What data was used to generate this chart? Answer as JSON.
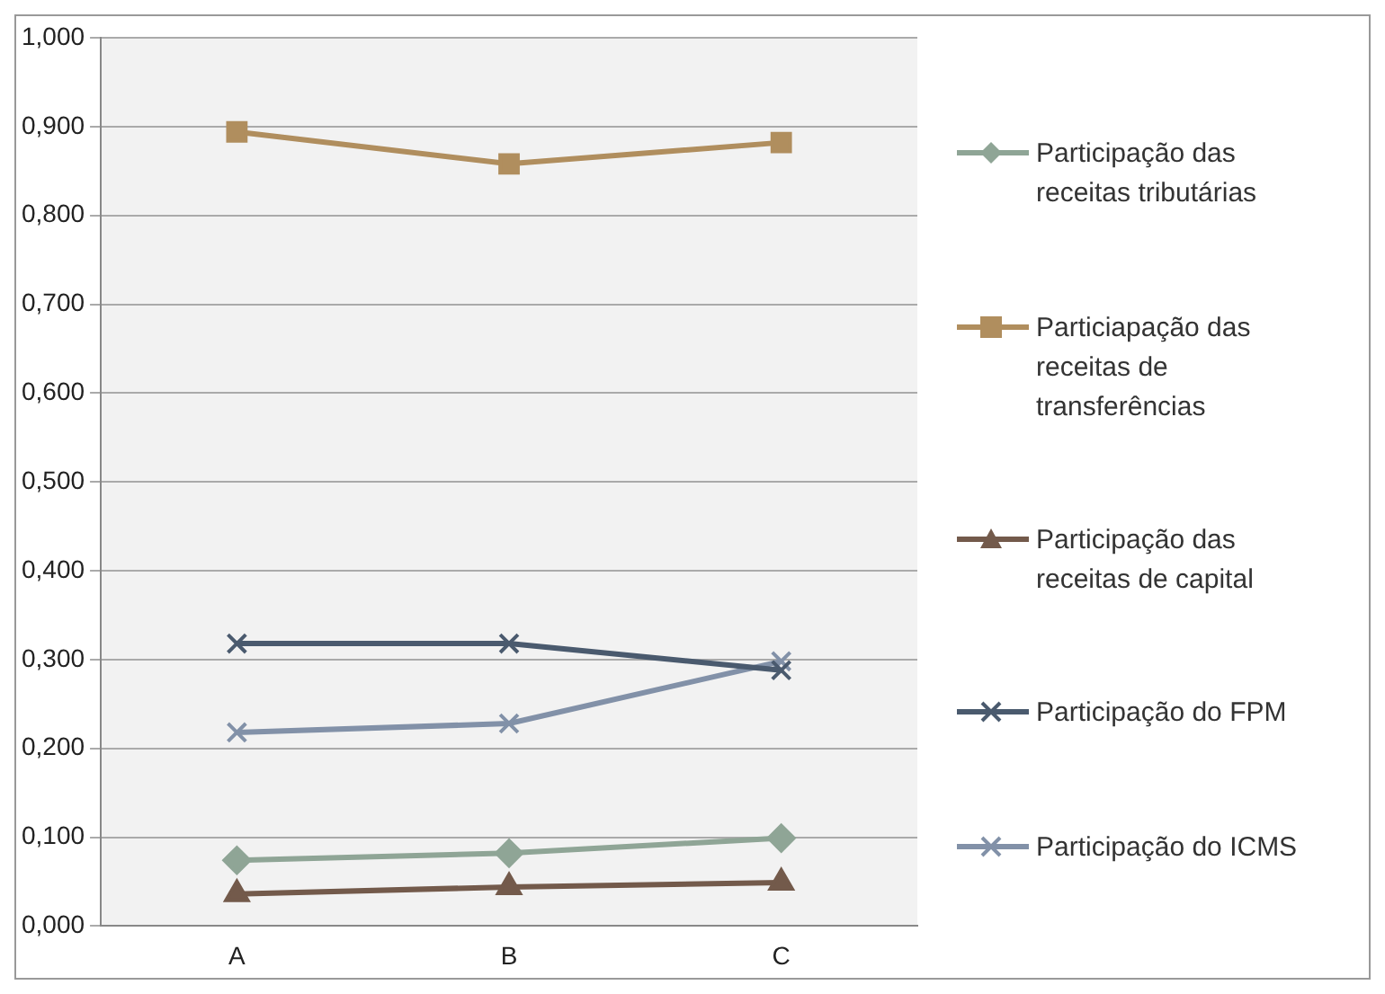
{
  "chart_data": {
    "type": "line",
    "categories": [
      "A",
      "B",
      "C"
    ],
    "series": [
      {
        "name": "Participação das receitas tributárias",
        "color": "#8fa596",
        "marker": "diamond",
        "values": [
          0.074,
          0.082,
          0.099
        ]
      },
      {
        "name": "Particiapação das receitas de transferências",
        "color": "#b08e5e",
        "marker": "square",
        "values": [
          0.894,
          0.858,
          0.882
        ]
      },
      {
        "name": "Participação das receitas de capital",
        "color": "#735a4b",
        "marker": "triangle",
        "values": [
          0.036,
          0.044,
          0.049
        ]
      },
      {
        "name": "Participação do FPM",
        "color": "#4a5a6e",
        "marker": "cross",
        "values": [
          0.318,
          0.318,
          0.288
        ]
      },
      {
        "name": "Participação do ICMS",
        "color": "#8291a8",
        "marker": "cross",
        "values": [
          0.218,
          0.228,
          0.298
        ]
      }
    ],
    "ylim": [
      0,
      1
    ],
    "yticks": [
      {
        "value": 0,
        "label": "0,000"
      },
      {
        "value": 0.1,
        "label": "0,100"
      },
      {
        "value": 0.2,
        "label": "0,200"
      },
      {
        "value": 0.3,
        "label": "0,300"
      },
      {
        "value": 0.4,
        "label": "0,400"
      },
      {
        "value": 0.5,
        "label": "0,500"
      },
      {
        "value": 0.6,
        "label": "0,600"
      },
      {
        "value": 0.7,
        "label": "0,700"
      },
      {
        "value": 0.8,
        "label": "0,800"
      },
      {
        "value": 0.9,
        "label": "0,900"
      },
      {
        "value": 1,
        "label": "1,000"
      }
    ],
    "grid": "y",
    "legend": "right",
    "line_style": "solid"
  }
}
